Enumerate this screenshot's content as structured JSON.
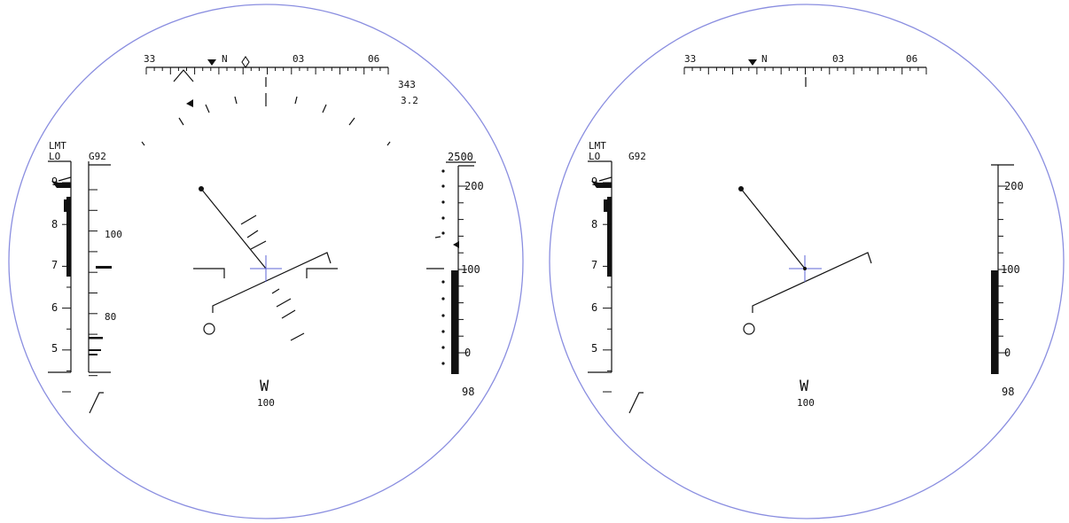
{
  "displays": [
    {
      "id": "left",
      "heading_scale": [
        "33",
        "N",
        "03",
        "06"
      ],
      "heading_readout": "343",
      "range_readout": "3.2",
      "limit_labels": [
        "LMT",
        "LO"
      ],
      "speed_label": "G92",
      "speed_scale": [
        "100",
        "80"
      ],
      "alt_top_label": "2500",
      "alt_scale": [
        "200",
        "100",
        "0"
      ],
      "vertical_scale": [
        "9",
        "8",
        "7",
        "6",
        "5"
      ],
      "course_letter": "W",
      "course_value": "100",
      "bottom_right": "98"
    },
    {
      "id": "right",
      "heading_scale": [
        "33",
        "N",
        "03",
        "06"
      ],
      "limit_labels": [
        "LMT",
        "LO"
      ],
      "speed_label": "G92",
      "alt_scale": [
        "200",
        "100",
        "0"
      ],
      "vertical_scale": [
        "9",
        "8",
        "7",
        "6",
        "5"
      ],
      "course_letter": "W",
      "course_value": "100",
      "bottom_right": "98"
    }
  ],
  "colors": {
    "bezel": "#8a8ee0",
    "crosshair": "#5b63d6",
    "symbology": "#111111"
  }
}
